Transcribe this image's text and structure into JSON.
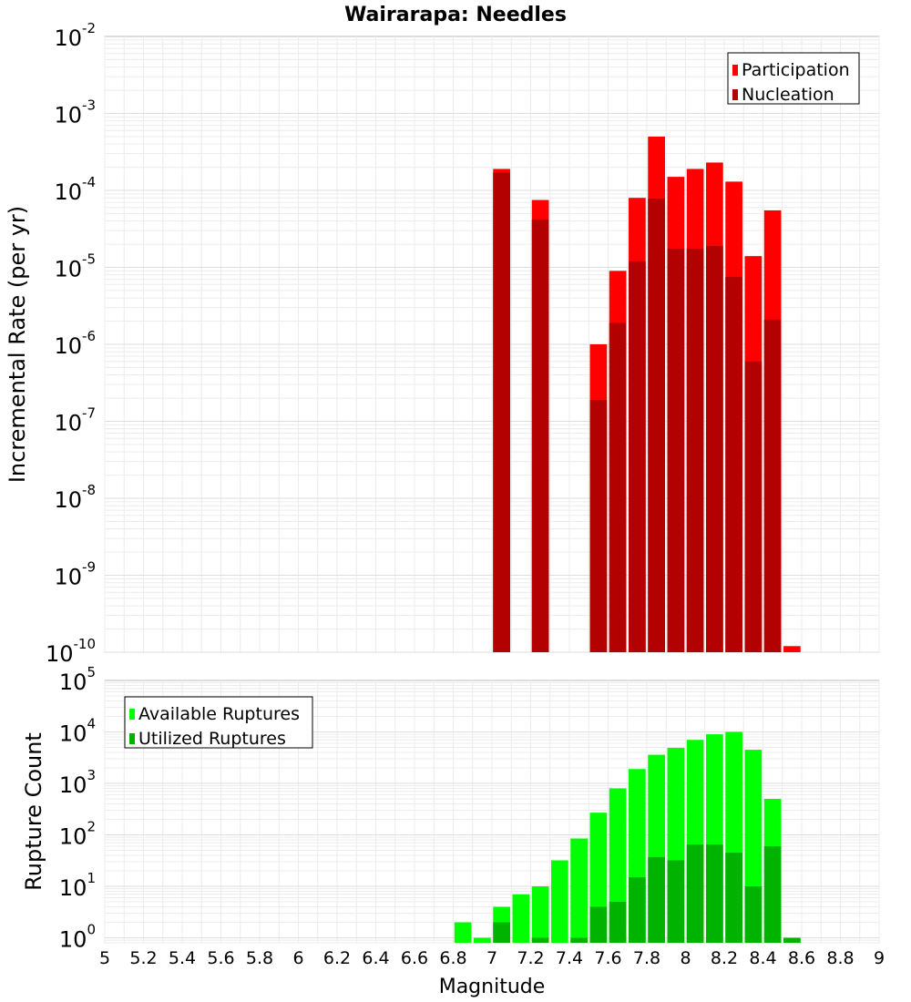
{
  "chart_data": [
    {
      "type": "bar",
      "title": "Wairarapa: Needles",
      "ylabel": "Incremental Rate (per yr)",
      "xlabel": "",
      "yscale": "log",
      "ylim": [
        1e-10,
        0.01
      ],
      "xlim": [
        5,
        9
      ],
      "y_tick_labels": [
        {
          "base": "10",
          "exp": "-10",
          "value": 1e-10
        },
        {
          "base": "10",
          "exp": "-9",
          "value": 1e-09
        },
        {
          "base": "10",
          "exp": "-8",
          "value": 1e-08
        },
        {
          "base": "10",
          "exp": "-7",
          "value": 1e-07
        },
        {
          "base": "10",
          "exp": "-6",
          "value": 1e-06
        },
        {
          "base": "10",
          "exp": "-5",
          "value": 1e-05
        },
        {
          "base": "10",
          "exp": "-4",
          "value": 0.0001
        },
        {
          "base": "10",
          "exp": "-3",
          "value": 0.001
        },
        {
          "base": "10",
          "exp": "-2",
          "value": 0.01
        }
      ],
      "grid": true,
      "legend_position": "top-right",
      "series": [
        {
          "name": "Participation",
          "color": "#ff0000",
          "x": [
            7.05,
            7.25,
            7.55,
            7.65,
            7.75,
            7.85,
            7.95,
            8.05,
            8.15,
            8.25,
            8.35,
            8.45,
            8.55
          ],
          "values": [
            0.00019,
            7.5e-05,
            1e-06,
            9e-06,
            8e-05,
            0.0005,
            0.00015,
            0.00019,
            0.00023,
            0.00013,
            1.4e-05,
            5.5e-05,
            1.2e-10
          ]
        },
        {
          "name": "Nucleation",
          "color": "#b30000",
          "x": [
            7.05,
            7.25,
            7.55,
            7.65,
            7.75,
            7.85,
            7.95,
            8.05,
            8.15,
            8.25,
            8.35,
            8.45
          ],
          "values": [
            0.00017,
            4.2e-05,
            1.9e-07,
            1.9e-06,
            1.2e-05,
            7.8e-05,
            1.75e-05,
            1.75e-05,
            1.9e-05,
            7.5e-06,
            6e-07,
            2.1e-06
          ]
        }
      ]
    },
    {
      "type": "bar",
      "title": "",
      "ylabel": "Rupture Count",
      "xlabel": "Magnitude",
      "yscale": "log",
      "ylim": [
        0.8,
        100000
      ],
      "xlim": [
        5,
        9
      ],
      "y_tick_labels": [
        {
          "base": "10",
          "exp": "0",
          "value": 1
        },
        {
          "base": "10",
          "exp": "1",
          "value": 10
        },
        {
          "base": "10",
          "exp": "2",
          "value": 100
        },
        {
          "base": "10",
          "exp": "3",
          "value": 1000
        },
        {
          "base": "10",
          "exp": "4",
          "value": 10000
        },
        {
          "base": "10",
          "exp": "5",
          "value": 100000
        }
      ],
      "x_tick_labels": [
        "5",
        "5.2",
        "5.4",
        "5.6",
        "5.8",
        "6",
        "6.2",
        "6.4",
        "6.6",
        "6.8",
        "7",
        "7.2",
        "7.4",
        "7.6",
        "7.8",
        "8",
        "8.2",
        "8.4",
        "8.6",
        "8.8",
        "9"
      ],
      "x_tick_values": [
        5,
        5.2,
        5.4,
        5.6,
        5.8,
        6,
        6.2,
        6.4,
        6.6,
        6.8,
        7,
        7.2,
        7.4,
        7.6,
        7.8,
        8,
        8.2,
        8.4,
        8.6,
        8.8,
        9
      ],
      "grid": true,
      "legend_position": "top-left",
      "series": [
        {
          "name": "Available Ruptures",
          "color": "#00ff00",
          "x": [
            6.85,
            6.95,
            7.05,
            7.15,
            7.25,
            7.35,
            7.45,
            7.55,
            7.65,
            7.75,
            7.85,
            7.95,
            8.05,
            8.15,
            8.25,
            8.35,
            8.45,
            8.55
          ],
          "values": [
            2,
            1,
            4,
            7,
            10,
            32,
            85,
            270,
            800,
            1900,
            3600,
            4900,
            7000,
            9000,
            10000,
            4500,
            500,
            1
          ]
        },
        {
          "name": "Utilized Ruptures",
          "color": "#00b300",
          "x": [
            7.05,
            7.25,
            7.45,
            7.55,
            7.65,
            7.75,
            7.85,
            7.95,
            8.05,
            8.15,
            8.25,
            8.35,
            8.45,
            8.55
          ],
          "values": [
            2,
            1,
            1,
            4,
            5,
            15,
            37,
            32,
            65,
            65,
            45,
            10,
            60,
            1
          ]
        }
      ]
    }
  ]
}
